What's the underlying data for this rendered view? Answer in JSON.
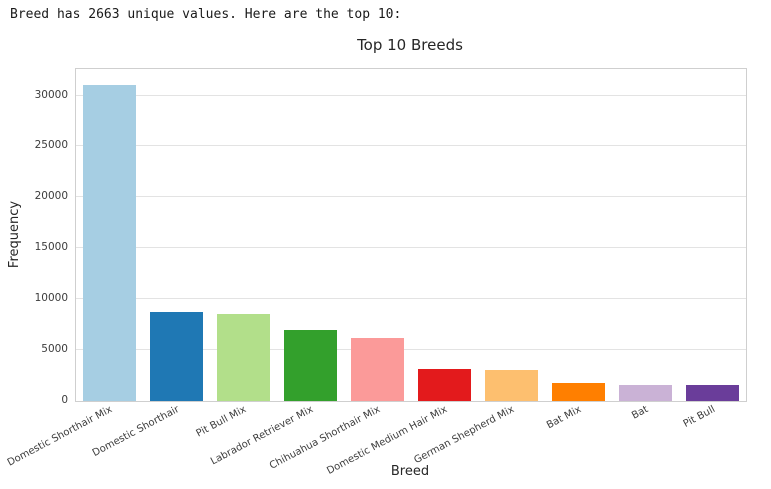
{
  "summary_text": "Breed has 2663 unique values. Here are the top 10:",
  "chart_data": {
    "type": "bar",
    "title": "Top 10 Breeds",
    "xlabel": "Breed",
    "ylabel": "Frequency",
    "categories": [
      "Domestic Shorthair Mix",
      "Domestic Shorthair",
      "Pit Bull Mix",
      "Labrador Retriever Mix",
      "Chihuahua Shorthair Mix",
      "Domestic Medium Hair Mix",
      "German Shepherd Mix",
      "Bat Mix",
      "Bat",
      "Pit Bull"
    ],
    "values": [
      31000,
      8700,
      8500,
      7000,
      6200,
      3100,
      3000,
      1750,
      1600,
      1550
    ],
    "bar_colors": [
      "#a6cee3",
      "#1f78b4",
      "#b2df8a",
      "#33a02c",
      "#fb9a99",
      "#e31a1c",
      "#fdbf6f",
      "#ff7f00",
      "#cab2d6",
      "#6a3d9a"
    ],
    "yticks": [
      0,
      5000,
      10000,
      15000,
      20000,
      25000,
      30000
    ],
    "ylim": [
      0,
      32600
    ],
    "grid": true,
    "legend": "none",
    "x_tick_rotation": 30,
    "unique_value_count": "2663",
    "top_n": "10"
  }
}
